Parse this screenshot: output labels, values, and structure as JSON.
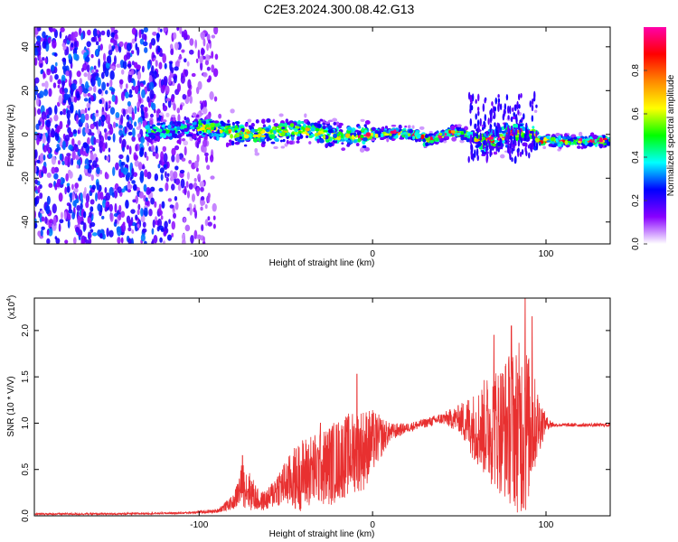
{
  "title": "C2E3.2024.300.08.42.G13",
  "chart_data": [
    {
      "type": "heatmap",
      "name": "spectrogram",
      "xlabel": "Height of straight line (km)",
      "ylabel": "Frequency (Hz)",
      "xlim": [
        -195,
        137
      ],
      "ylim": [
        -50,
        49
      ],
      "xticks": [
        -100,
        0,
        100
      ],
      "xtick_labels": [
        "-100",
        "0",
        "100"
      ],
      "yticks": [
        40,
        20,
        0,
        -20,
        -40
      ],
      "ytick_labels": [
        "40",
        "20",
        "0",
        "-20",
        "-40"
      ],
      "colorbar": {
        "label": "Normalized spectral amplitude",
        "range": [
          0,
          1
        ],
        "ticks": [
          0.0,
          0.2,
          0.4,
          0.6,
          0.8
        ],
        "tick_labels": [
          "0.0",
          "0.2",
          "0.4",
          "0.6",
          "0.8"
        ],
        "colors": [
          "#ffffff",
          "#8800ff",
          "#0000ff",
          "#00ffff",
          "#00ff00",
          "#ffff00",
          "#ff8800",
          "#ff0000",
          "#ff00aa"
        ]
      },
      "regions": [
        {
          "description": "broadband noise",
          "x_range": [
            -195,
            -90
          ],
          "freq_range": [
            -50,
            49
          ],
          "amplitude": 0.15
        },
        {
          "description": "signal band",
          "x_range": [
            -130,
            137
          ],
          "freq_center": 0,
          "freq_halfwidth": 4,
          "amplitude_max": 1.0
        }
      ]
    },
    {
      "type": "line",
      "name": "snr",
      "xlabel": "Height of straight line (km)",
      "ylabel": "SNR (10 * V/V)",
      "y_multiplier_label": "(x10",
      "y_multiplier_exp": "4",
      "xlim": [
        -195,
        137
      ],
      "ylim": [
        0,
        2.35
      ],
      "xticks": [
        -100,
        0,
        100
      ],
      "xtick_labels": [
        "-100",
        "0",
        "100"
      ],
      "yticks": [
        0.0,
        0.5,
        1.0,
        1.5,
        2.0
      ],
      "ytick_labels": [
        "0.0",
        "0.5",
        "1.0",
        "1.5",
        "2.0"
      ],
      "color": "#e83030",
      "envelope": {
        "x": [
          -195,
          -150,
          -110,
          -90,
          -80,
          -75,
          -70,
          -65,
          -60,
          -55,
          -50,
          -45,
          -40,
          -35,
          -30,
          -25,
          -20,
          -15,
          -10,
          -5,
          0,
          10,
          20,
          30,
          40,
          50,
          55,
          60,
          65,
          70,
          75,
          80,
          85,
          88,
          90,
          95,
          100,
          105,
          110,
          120,
          137
        ],
        "mean": [
          0.02,
          0.02,
          0.03,
          0.05,
          0.15,
          0.35,
          0.25,
          0.15,
          0.18,
          0.3,
          0.35,
          0.4,
          0.45,
          0.5,
          0.5,
          0.55,
          0.6,
          0.65,
          0.7,
          0.72,
          0.8,
          0.9,
          0.95,
          1.0,
          1.05,
          1.05,
          1.0,
          0.95,
          0.95,
          0.95,
          0.95,
          0.95,
          0.95,
          0.95,
          0.95,
          1.0,
          1.0,
          0.98,
          0.98,
          0.98,
          0.98
        ],
        "amp": [
          0.01,
          0.01,
          0.01,
          0.02,
          0.08,
          0.25,
          0.2,
          0.1,
          0.12,
          0.2,
          0.25,
          0.35,
          0.4,
          0.4,
          0.4,
          0.45,
          0.45,
          0.45,
          0.45,
          0.45,
          0.35,
          0.1,
          0.05,
          0.05,
          0.06,
          0.15,
          0.3,
          0.4,
          0.55,
          0.65,
          0.75,
          0.85,
          0.95,
          1.0,
          0.8,
          0.4,
          0.08,
          0.02,
          0.02,
          0.02,
          0.02
        ]
      },
      "peaks": [
        {
          "x": -75,
          "y": 0.65
        },
        {
          "x": -30,
          "y": 1.0
        },
        {
          "x": -9,
          "y": 1.53
        },
        {
          "x": 70,
          "y": 1.95
        },
        {
          "x": 80,
          "y": 2.05
        },
        {
          "x": 88,
          "y": 2.35
        },
        {
          "x": 92,
          "y": 2.15
        }
      ]
    }
  ]
}
